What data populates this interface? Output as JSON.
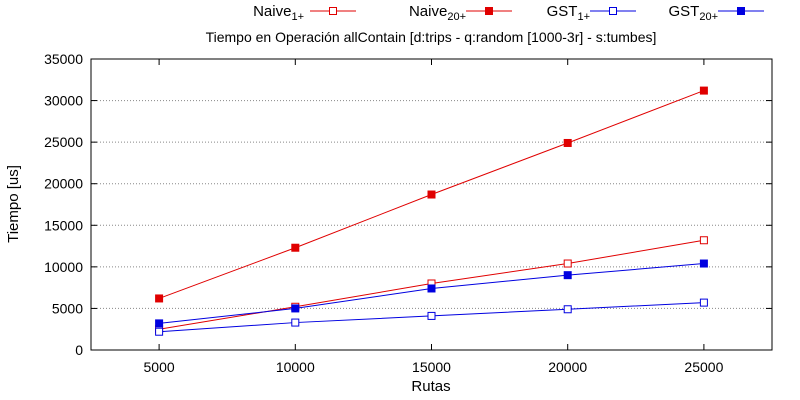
{
  "chart_data": {
    "type": "line",
    "title": "Tiempo en Operación allContain [d:trips - q:random [1000-3r] - s:tumbes]",
    "xlabel": "Rutas",
    "ylabel": "Tiempo [us]",
    "x": [
      5000,
      10000,
      15000,
      20000,
      25000
    ],
    "xlim": [
      2500,
      27500
    ],
    "ylim": [
      0,
      35000
    ],
    "xticks": [
      "5000",
      "10000",
      "15000",
      "20000",
      "25000"
    ],
    "yticks": [
      "0",
      "5000",
      "10000",
      "15000",
      "20000",
      "25000",
      "30000",
      "35000"
    ],
    "grid": "horizontal dotted",
    "legend_position": "top",
    "series": [
      {
        "name": "Naive",
        "subscript": "1+",
        "color": "#e00000",
        "marker": "open-square",
        "values": [
          2500,
          5200,
          8000,
          10400,
          13200
        ]
      },
      {
        "name": "Naive",
        "subscript": "20+",
        "color": "#e00000",
        "marker": "filled-square",
        "values": [
          6200,
          12300,
          18700,
          24900,
          31200
        ]
      },
      {
        "name": "GST",
        "subscript": "1+",
        "color": "#0000e0",
        "marker": "open-square",
        "values": [
          2200,
          3300,
          4100,
          4900,
          5700
        ]
      },
      {
        "name": "GST",
        "subscript": "20+",
        "color": "#0000e0",
        "marker": "filled-square",
        "values": [
          3200,
          5000,
          7400,
          9000,
          10400
        ]
      }
    ]
  }
}
